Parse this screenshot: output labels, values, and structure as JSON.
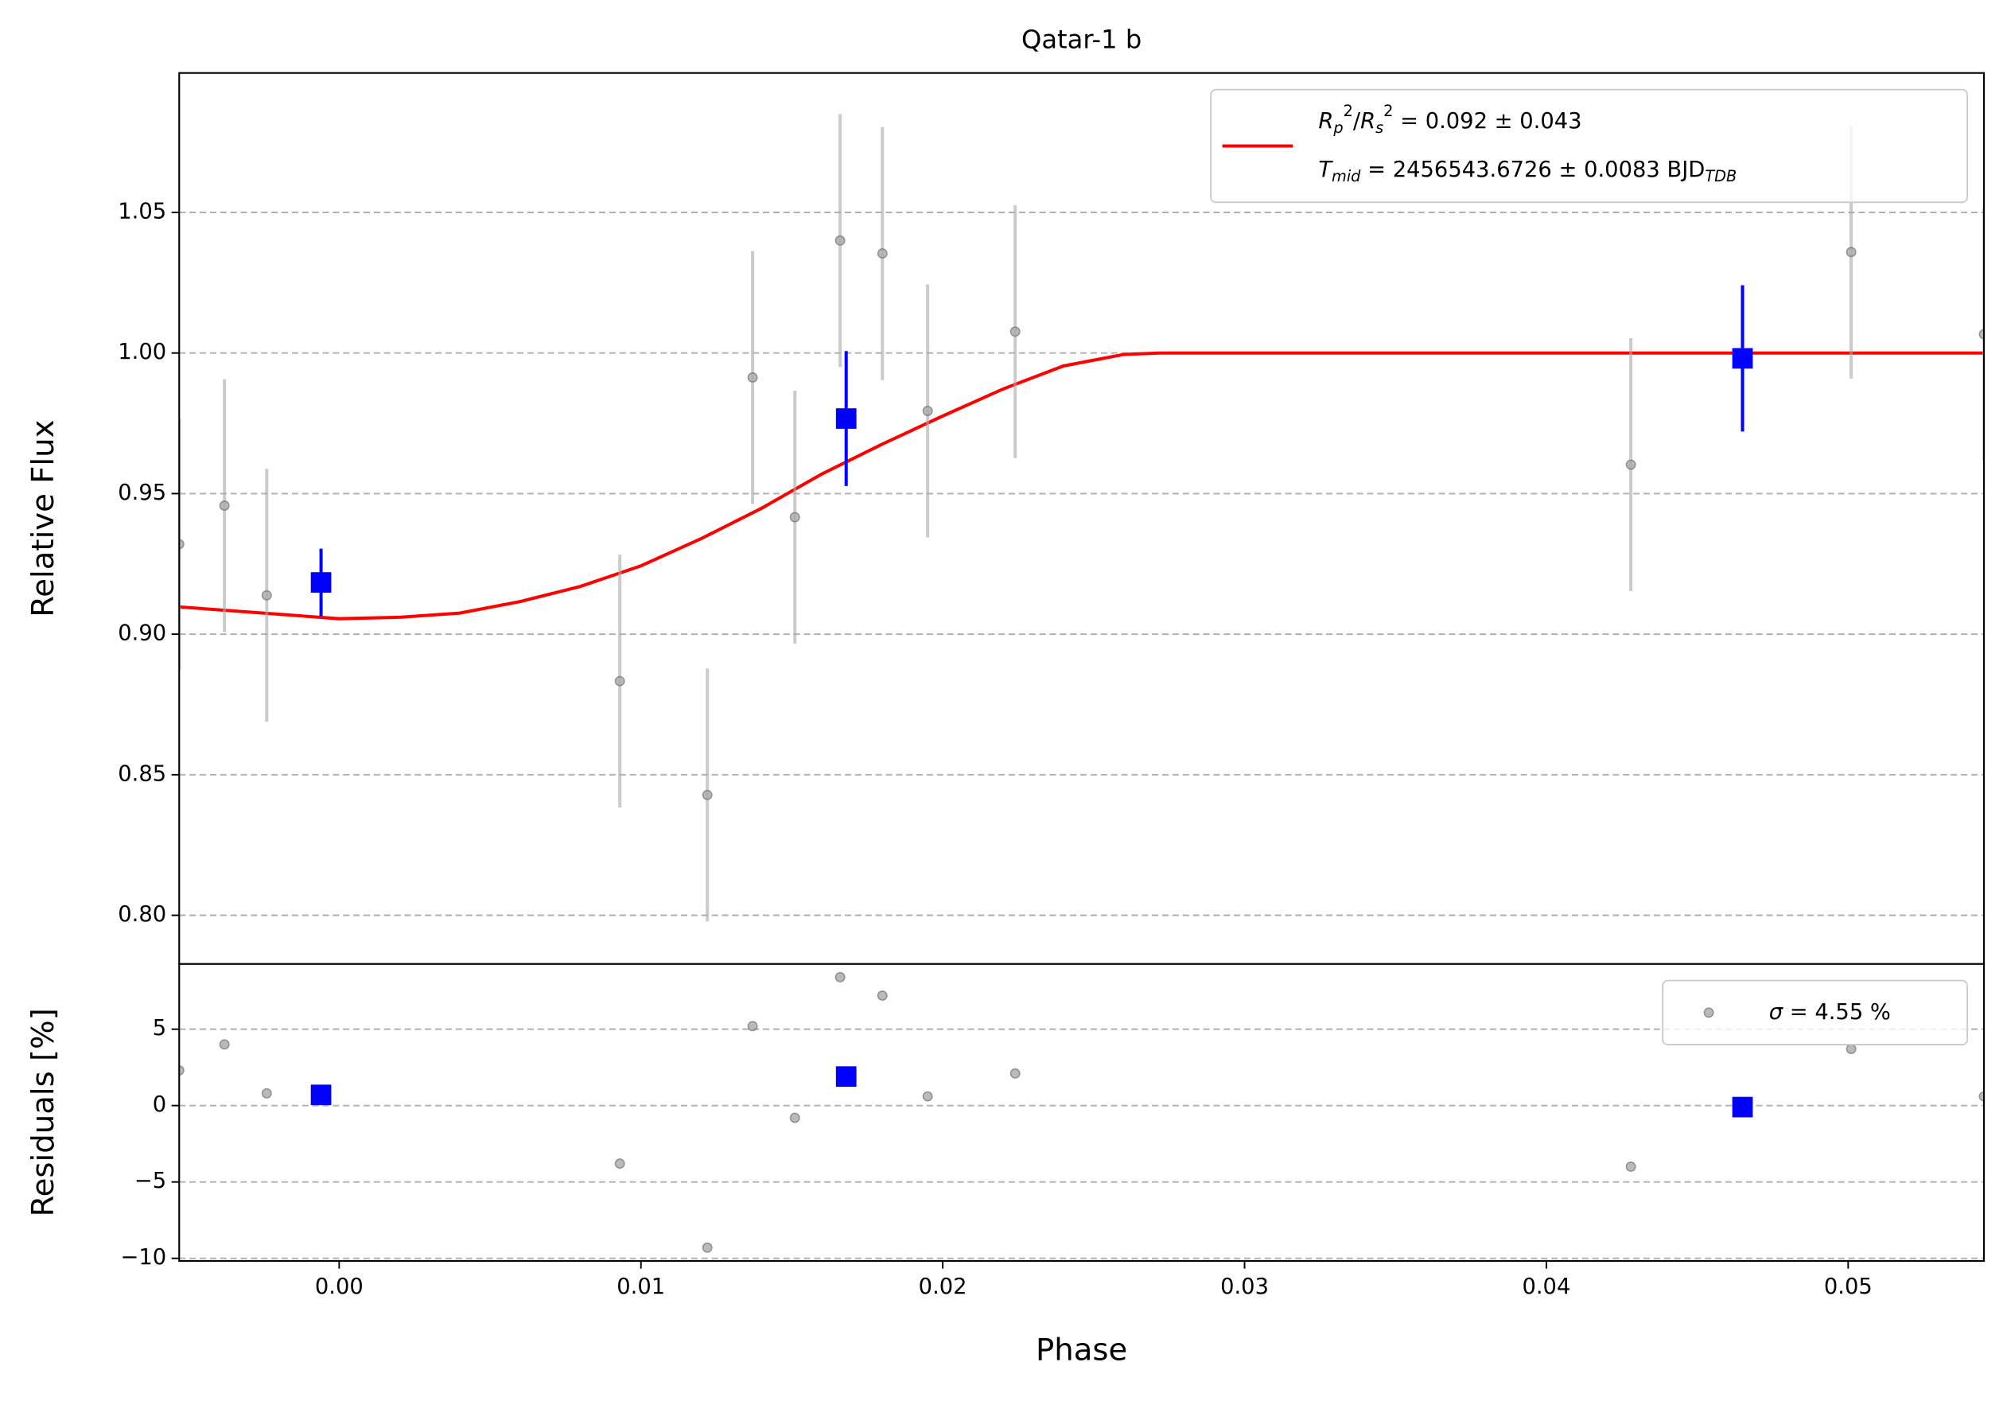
{
  "chart_data": [
    {
      "type": "scatter",
      "title": "Qatar-1 b",
      "ylabel": "Relative Flux",
      "xlim": [
        -0.0053,
        0.0545
      ],
      "ylim": [
        0.7827,
        1.0996
      ],
      "yticks": [
        {
          "value": 0.8,
          "label": "0.80"
        },
        {
          "value": 0.85,
          "label": "0.85"
        },
        {
          "value": 0.9,
          "label": "0.90"
        },
        {
          "value": 0.95,
          "label": "0.95"
        },
        {
          "value": 1.0,
          "label": "1.00"
        },
        {
          "value": 1.05,
          "label": "1.05"
        }
      ],
      "grid": true,
      "legend": "upper right",
      "series": [
        {
          "type": "line",
          "color": "#ff0000",
          "name": [
            [
              {
                "text": "R",
                "style": "italic"
              },
              {
                "text": "p",
                "style": "sub"
              },
              {
                "text": "2",
                "style": "sup"
              },
              {
                "text": "/"
              },
              {
                "text": "R",
                "style": "italic"
              },
              {
                "text": "s",
                "style": "sub"
              },
              {
                "text": "2",
                "style": "sup"
              },
              {
                "text": " = 0.092 ± 0.043"
              }
            ],
            [
              {
                "text": "T",
                "style": "italic"
              },
              {
                "text": "mid",
                "style": "sub"
              },
              {
                "text": " = 2456543.6726 ± 0.0083 BJD"
              },
              {
                "text": "TDB",
                "style": "sub"
              }
            ]
          ],
          "x": [
            -0.0053,
            0.0,
            0.002,
            0.004,
            0.006,
            0.008,
            0.01,
            0.012,
            0.014,
            0.016,
            0.018,
            0.02,
            0.022,
            0.024,
            0.026,
            0.0272,
            0.0545
          ],
          "values": [
            0.9097,
            0.9055,
            0.906,
            0.9075,
            0.9116,
            0.917,
            0.9243,
            0.934,
            0.9448,
            0.957,
            0.9676,
            0.9776,
            0.9872,
            0.9954,
            0.9995,
            1.0,
            1.0
          ]
        },
        {
          "type": "errorbar",
          "color": "#aaaaaa",
          "marker": "circle",
          "x": [
            -0.0053,
            -0.0038,
            -0.0024,
            0.0093,
            0.0122,
            0.0137,
            0.0151,
            0.0166,
            0.018,
            0.0195,
            0.0224,
            0.0428,
            0.0501,
            0.0545
          ],
          "values": [
            0.932,
            0.9457,
            0.9138,
            0.8833,
            0.8428,
            0.9913,
            0.9416,
            1.04,
            1.0354,
            0.9794,
            1.0076,
            0.9603,
            1.0359,
            1.0067
          ],
          "errors": [
            0.045,
            0.045,
            0.045,
            0.045,
            0.045,
            0.045,
            0.045,
            0.045,
            0.045,
            0.045,
            0.045,
            0.045,
            0.045,
            0.045
          ]
        },
        {
          "type": "errorbar",
          "color": "#0000ff",
          "marker": "square",
          "x": [
            -0.0006,
            0.0168,
            0.0465
          ],
          "values": [
            0.9184,
            0.9767,
            0.9981
          ],
          "errors": [
            0.012,
            0.024,
            0.026
          ]
        }
      ]
    },
    {
      "type": "scatter",
      "xlabel": "Phase",
      "ylabel": "Residuals [%]",
      "xlim": [
        -0.0053,
        0.0545
      ],
      "ylim": [
        -10.17,
        9.27
      ],
      "xticks": [
        {
          "value": 0,
          "label": "0.00"
        },
        {
          "value": 0.01,
          "label": "0.01"
        },
        {
          "value": 0.02,
          "label": "0.02"
        },
        {
          "value": 0.03,
          "label": "0.03"
        },
        {
          "value": 0.04,
          "label": "0.04"
        },
        {
          "value": 0.05,
          "label": "0.05"
        }
      ],
      "yticks": [
        {
          "value": -10,
          "label": "−10"
        },
        {
          "value": -5,
          "label": "−5"
        },
        0,
        5
      ],
      "grid": true,
      "legend": "upper right",
      "series": [
        {
          "type": "errorbar",
          "color": "#aaaaaa",
          "marker": "circle",
          "name": [
            [
              {
                "text": "σ",
                "style": "italic"
              },
              {
                "text": " = 4.55 %"
              }
            ]
          ],
          "x": [
            -0.0053,
            -0.0038,
            -0.0024,
            0.0093,
            0.0122,
            0.0137,
            0.0151,
            0.0166,
            0.018,
            0.0195,
            0.0224,
            0.0428,
            0.0501,
            0.0545
          ],
          "values": [
            2.3,
            4.0,
            0.8,
            -3.8,
            -9.3,
            5.2,
            -0.8,
            8.4,
            7.2,
            0.6,
            2.1,
            -4.0,
            3.7,
            0.6
          ]
        },
        {
          "type": "errorbar",
          "color": "#0000ff",
          "marker": "square",
          "x": [
            -0.0006,
            0.0168,
            0.0465
          ],
          "values": [
            0.7,
            1.9,
            -0.1
          ]
        }
      ]
    }
  ]
}
